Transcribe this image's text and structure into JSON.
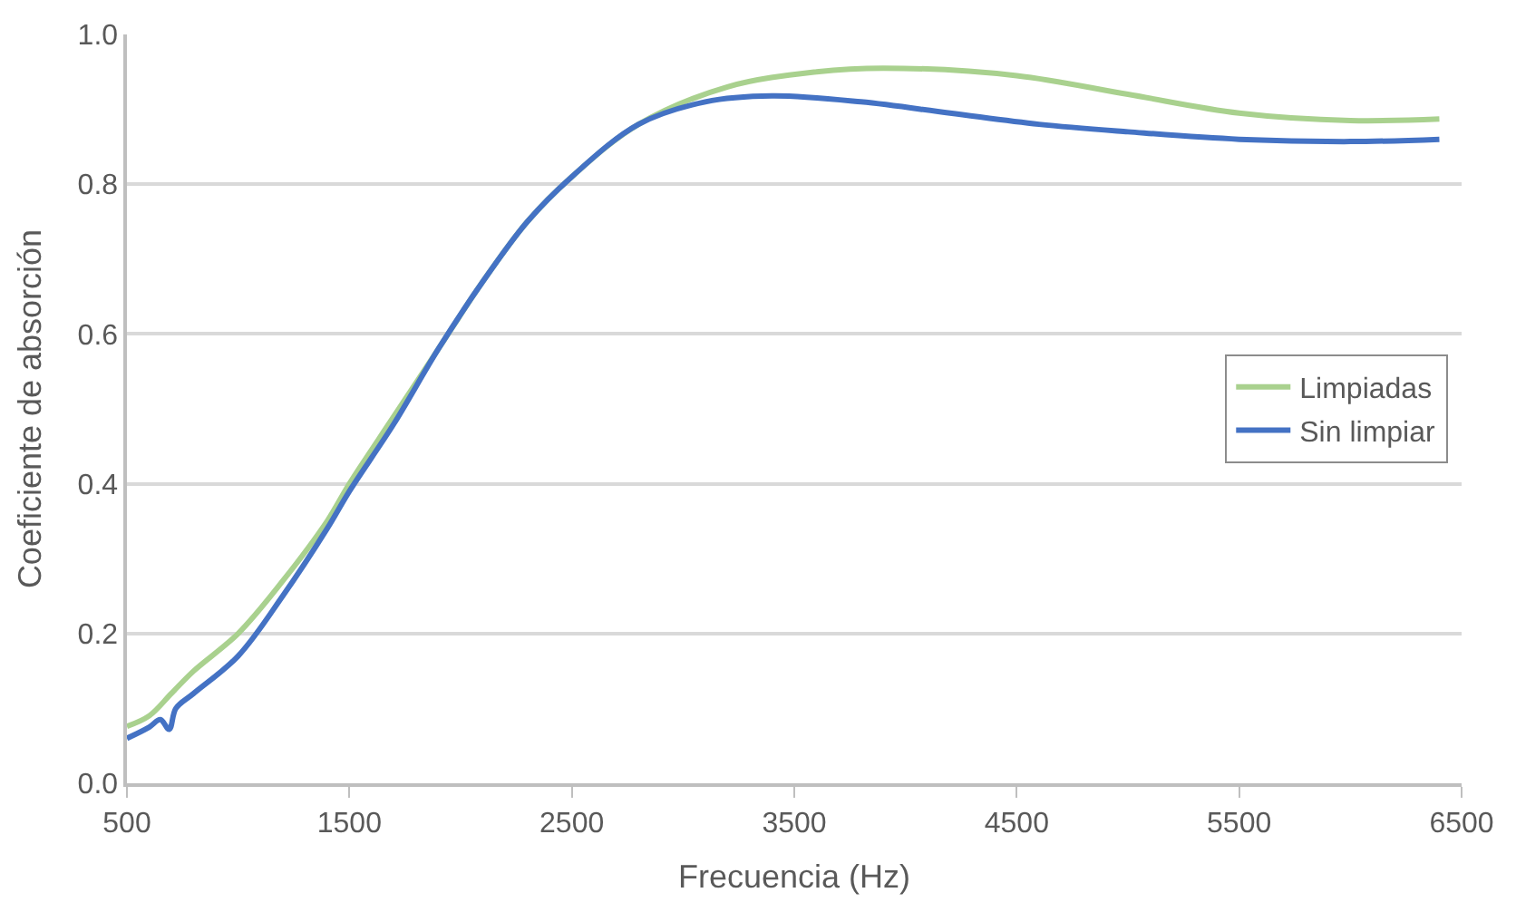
{
  "chart_data": {
    "type": "line",
    "xlabel": "Frecuencia (Hz)",
    "ylabel": "Coeficiente de absorción",
    "xlim": [
      500,
      6500
    ],
    "xticks": [
      500,
      1500,
      2500,
      3500,
      4500,
      5500,
      6500
    ],
    "ylim": [
      0,
      1.0
    ],
    "yticks": [
      {
        "value": 0,
        "label": "0.0"
      },
      {
        "value": 0.2,
        "label": "0.2"
      },
      {
        "value": 0.4,
        "label": "0.4"
      },
      {
        "value": 0.6,
        "label": "0.6"
      },
      {
        "value": 0.8,
        "label": "0.8"
      },
      {
        "value": 1.0,
        "label": "1.0"
      }
    ],
    "grid": "y",
    "legend": "right",
    "marker": "none",
    "line_style": "solid",
    "series": [
      {
        "name": "Limpiadas",
        "color": "#a9d18e",
        "x": [
          500,
          600,
          700,
          800,
          1000,
          1200,
          1400,
          1500,
          1700,
          1900,
          2100,
          2300,
          2500,
          2800,
          3200,
          3600,
          3900,
          4500,
          5000,
          5500,
          6000,
          6400
        ],
        "values": [
          0.076,
          0.09,
          0.12,
          0.15,
          0.2,
          0.27,
          0.35,
          0.4,
          0.49,
          0.58,
          0.67,
          0.75,
          0.81,
          0.88,
          0.93,
          0.95,
          0.955,
          0.945,
          0.92,
          0.895,
          0.885,
          0.887
        ]
      },
      {
        "name": "Sin limpiar",
        "color": "#4472c4",
        "x": [
          500,
          600,
          650,
          690,
          720,
          800,
          1000,
          1200,
          1400,
          1500,
          1700,
          1900,
          2100,
          2300,
          2500,
          2800,
          3100,
          3400,
          3800,
          4200,
          4600,
          5000,
          5500,
          6000,
          6400
        ],
        "values": [
          0.06,
          0.075,
          0.085,
          0.072,
          0.1,
          0.12,
          0.17,
          0.25,
          0.34,
          0.39,
          0.48,
          0.58,
          0.67,
          0.75,
          0.81,
          0.88,
          0.91,
          0.918,
          0.91,
          0.895,
          0.88,
          0.87,
          0.86,
          0.857,
          0.86
        ]
      }
    ]
  }
}
